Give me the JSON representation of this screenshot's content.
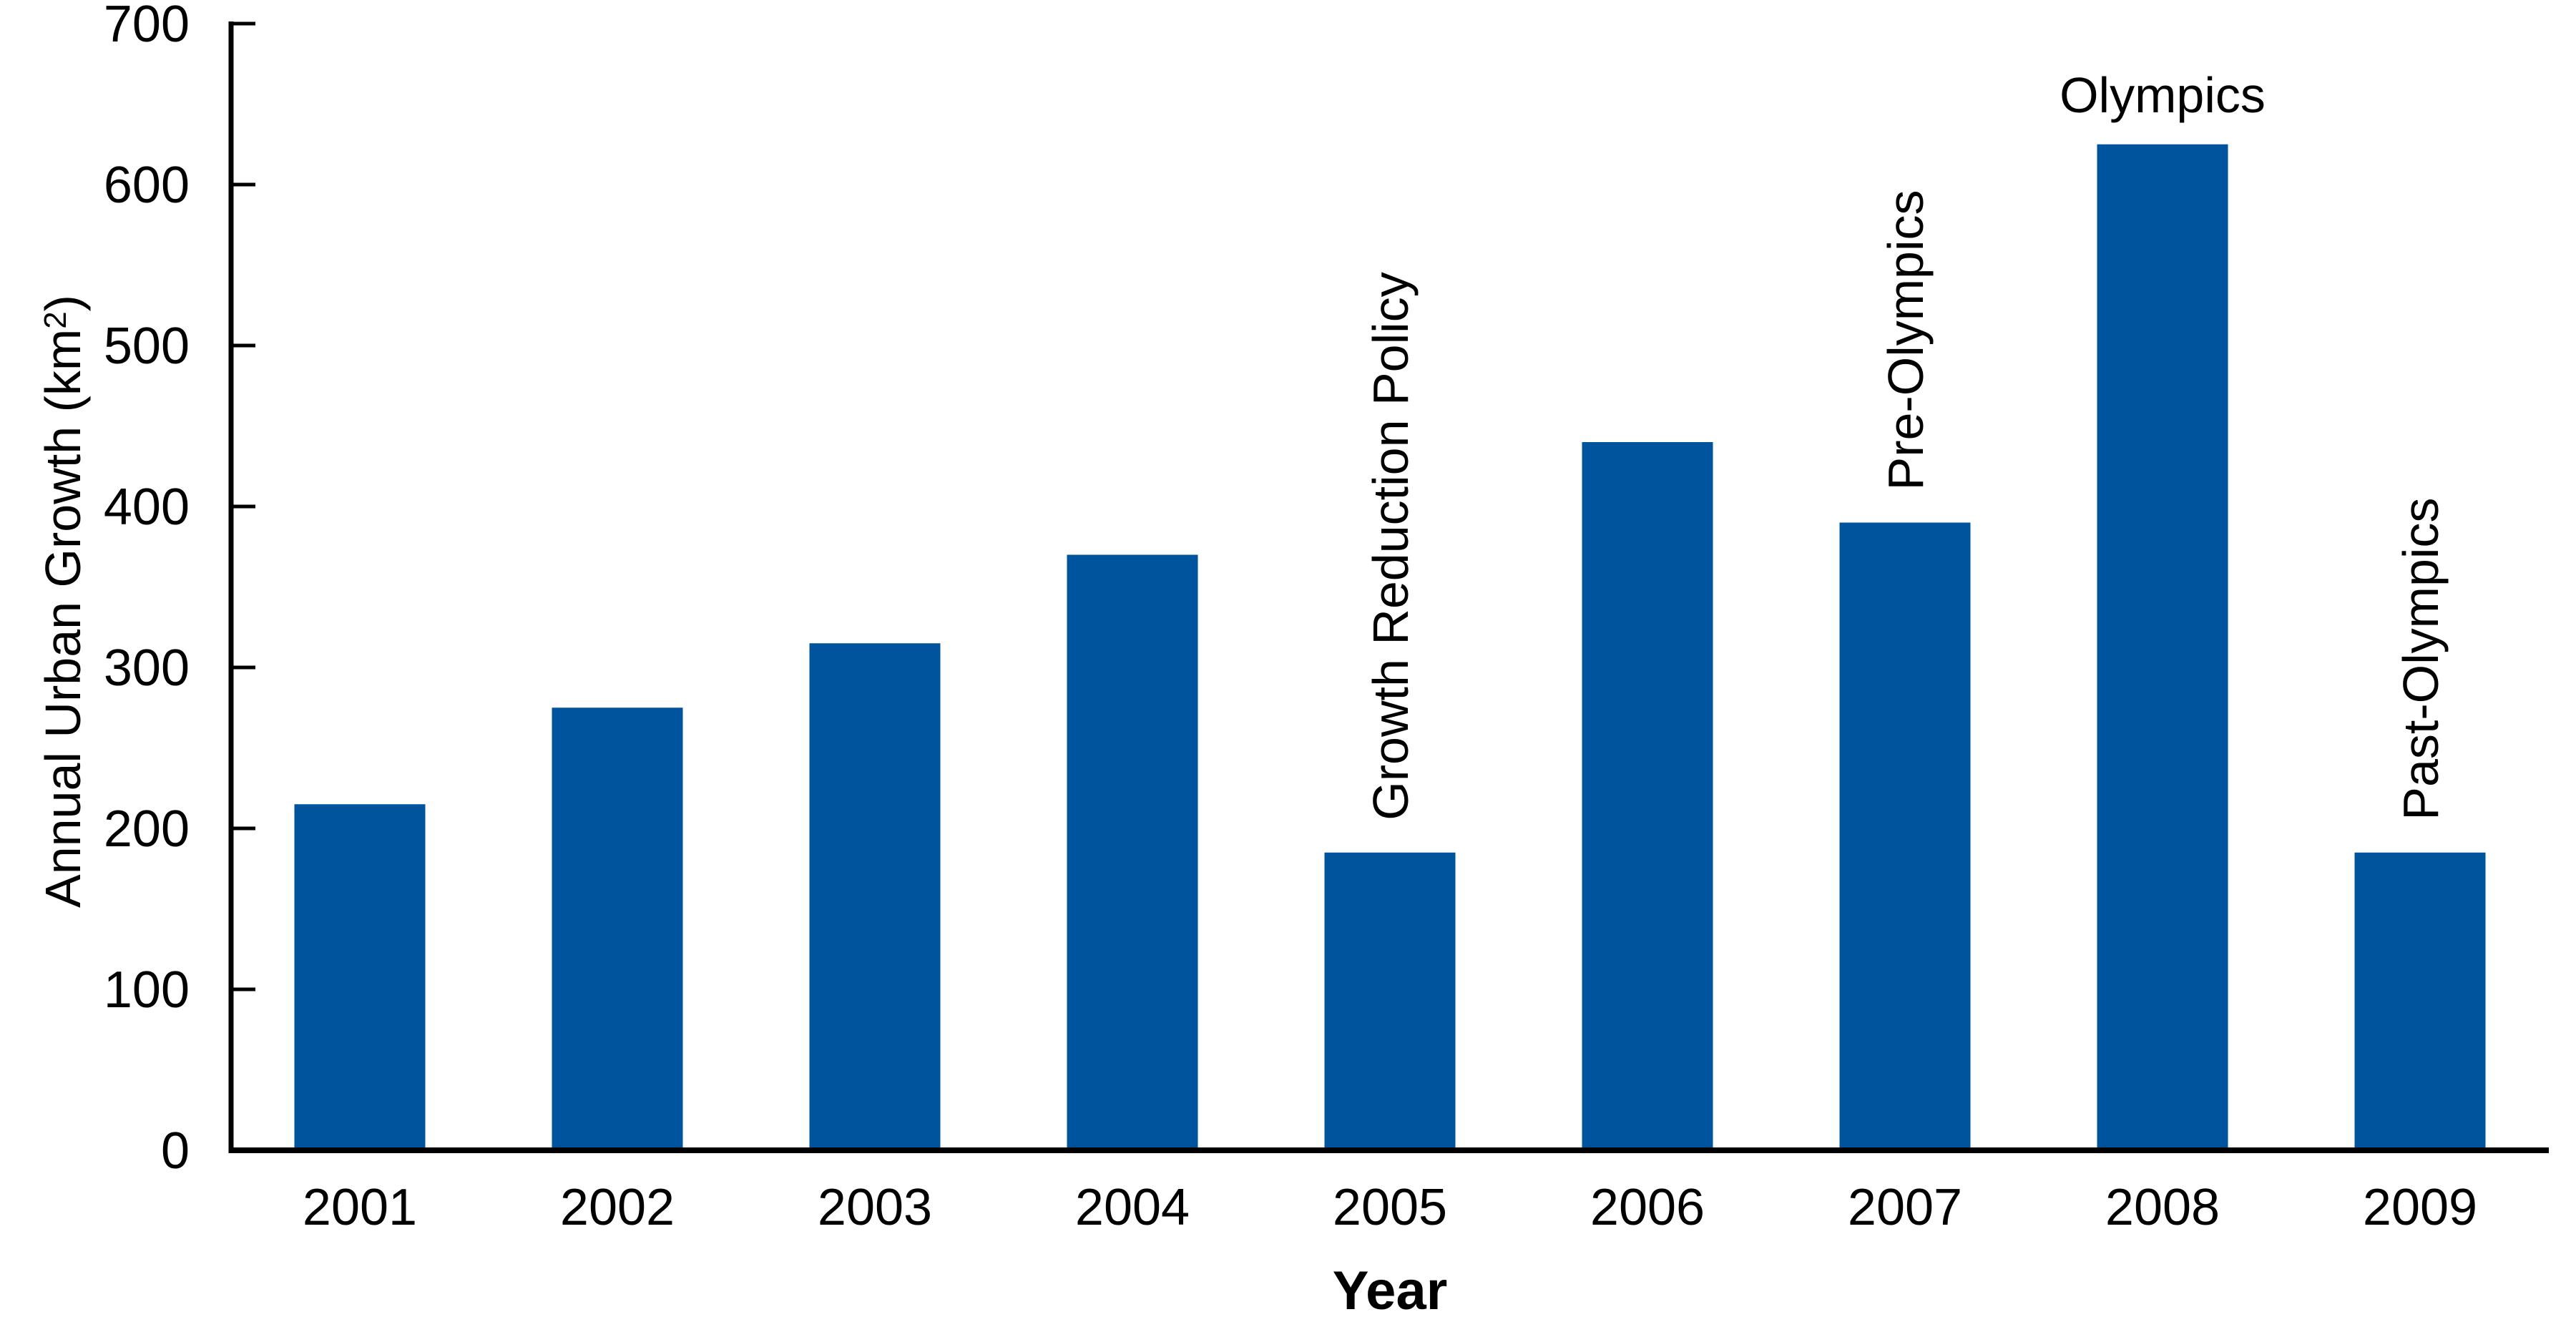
{
  "chart_data": {
    "type": "bar",
    "title": "",
    "categories": [
      "2001",
      "2002",
      "2003",
      "2004",
      "2005",
      "2006",
      "2007",
      "2008",
      "2009"
    ],
    "values": [
      215,
      275,
      315,
      370,
      185,
      440,
      390,
      625,
      185
    ],
    "xlabel": "Year",
    "ylabel": "Annual Urban Growth (km²)",
    "ylim": [
      0,
      700
    ],
    "ytick_labels": [
      "0",
      "100",
      "200",
      "300",
      "400",
      "500",
      "600",
      "700"
    ],
    "grid": false,
    "legend": "none",
    "bar_color": "#00549E",
    "axis_color": "#000000",
    "background_color": "#FFFFFF",
    "annotations": [
      {
        "category": "2005",
        "text": "Growth Reduction Policy",
        "rotated": true
      },
      {
        "category": "2007",
        "text": "Pre-Olympics",
        "rotated": true
      },
      {
        "category": "2008",
        "text": "Olympics",
        "rotated": false
      },
      {
        "category": "2009",
        "text": "Past-Olympics",
        "rotated": true
      }
    ]
  }
}
